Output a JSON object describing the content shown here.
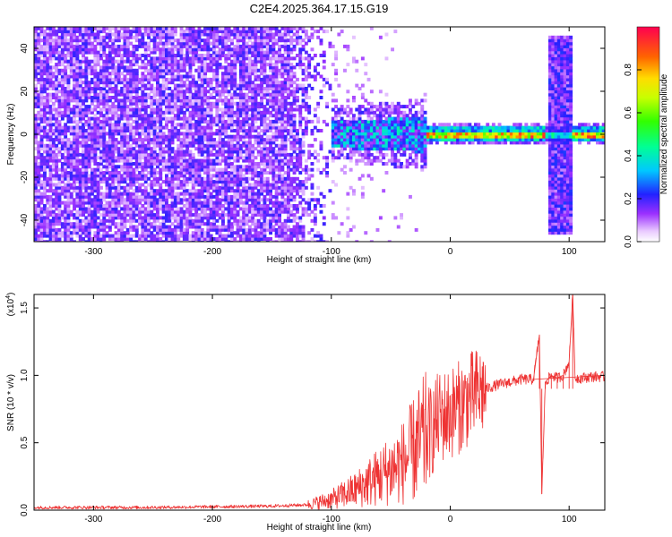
{
  "figure_title": "C2E4.2025.364.17.15.G19",
  "colors": {
    "snr_line": "#ee3333",
    "axis": "#000000",
    "background": "#ffffff"
  },
  "chart_data": [
    {
      "type": "heatmap",
      "name": "spectrogram",
      "xlabel": "Height of straight line (km)",
      "ylabel": "Frequency (Hz)",
      "xlim": [
        -350,
        130
      ],
      "ylim": [
        -50,
        50
      ],
      "xticks": [
        -300,
        -200,
        -100,
        0,
        100
      ],
      "yticks": [
        -40,
        -20,
        0,
        20,
        40
      ],
      "colorbar": {
        "label": "Normalized spectral amplitude",
        "range": [
          0,
          1
        ],
        "ticks": [
          0.0,
          0.2,
          0.4,
          0.6,
          0.8
        ],
        "colormap": "white-purple-blue-cyan-green-yellow-red"
      },
      "features": [
        {
          "desc": "broadband noise",
          "x_range": [
            -350,
            -100
          ],
          "freq_range": [
            -50,
            50
          ],
          "amplitude": 0.15
        },
        {
          "desc": "converging noise",
          "x_range": [
            -100,
            -20
          ],
          "freq_range": [
            -18,
            18
          ],
          "amplitude": 0.35
        },
        {
          "desc": "narrow carrier",
          "x_range": [
            -20,
            130
          ],
          "freq_center": 0,
          "amplitude": 0.9
        },
        {
          "desc": "vertical broadband burst",
          "x_range": [
            80,
            102
          ],
          "freq_range": [
            -50,
            50
          ],
          "amplitude": 0.2
        }
      ]
    },
    {
      "type": "line",
      "name": "snr",
      "xlabel": "Height of straight line (km)",
      "ylabel": "SNR (10 * v/v)",
      "y_multiplier": "(x10^4)",
      "y_multiplier_base": "(x10",
      "y_multiplier_exp": "4",
      "y_multiplier_close": ")",
      "xlim": [
        -350,
        130
      ],
      "ylim": [
        0,
        1.6
      ],
      "xticks": [
        -300,
        -200,
        -100,
        0,
        100
      ],
      "yticks": [
        0.0,
        0.5,
        1.0,
        1.5
      ],
      "series": [
        {
          "name": "SNR",
          "color": "#ee3333",
          "x": [
            -350,
            -300,
            -250,
            -200,
            -150,
            -120,
            -100,
            -80,
            -60,
            -40,
            -30,
            -20,
            -15,
            -10,
            0,
            10,
            20,
            30,
            40,
            50,
            60,
            70,
            75,
            77,
            80,
            85,
            90,
            95,
            100,
            103,
            105,
            110,
            120,
            130
          ],
          "y": [
            0.02,
            0.02,
            0.02,
            0.025,
            0.03,
            0.04,
            0.08,
            0.15,
            0.25,
            0.35,
            0.45,
            0.55,
            0.6,
            0.68,
            0.72,
            0.78,
            0.85,
            0.9,
            0.93,
            0.95,
            0.97,
            0.97,
            1.3,
            0.12,
            0.95,
            1.0,
            0.98,
            1.0,
            1.1,
            1.6,
            0.98,
            0.98,
            0.99,
            0.99
          ]
        }
      ]
    }
  ]
}
